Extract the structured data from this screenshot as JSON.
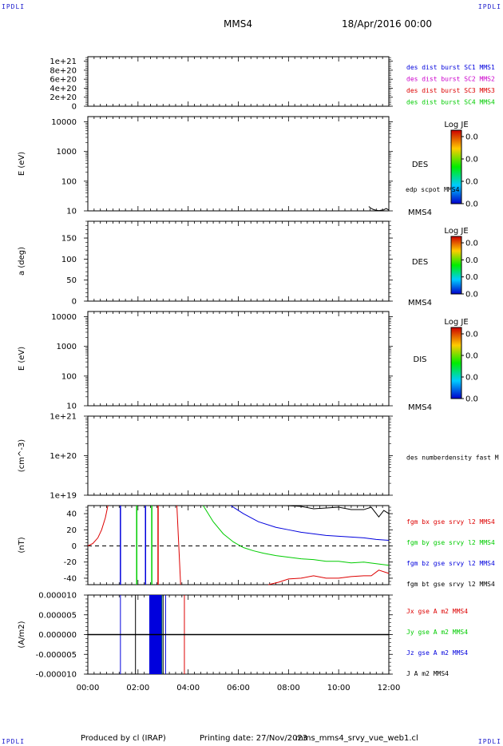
{
  "header": {
    "spacecraft": "MMS4",
    "date": "18/Apr/2016 00:00",
    "corner_left": "IPDLI",
    "corner_right": "IPDLI"
  },
  "footer": {
    "produced": "Produced by cl (IRAP)",
    "printing": "Printing date: 27/Nov/2023",
    "file": "mms_mms4_srvy_vue_web1.cl",
    "corner_left": "IPDLI",
    "corner_right": "IPDLI"
  },
  "colors": {
    "blue": "#0000dd",
    "magenta": "#cc00cc",
    "red": "#dd0000",
    "green": "#00cc00",
    "black": "#000000",
    "corner": "#1a1acc"
  },
  "chart_data": [
    {
      "type": "line",
      "panel": "dist_burst",
      "ytick_labels": [
        "1e+21",
        "8e+20",
        "6e+20",
        "4e+20",
        "2e+20",
        "0"
      ],
      "ytick_values": [
        1e+21,
        8e+20,
        6e+20,
        4e+20,
        2e+20,
        0
      ],
      "ylim": [
        0,
        1.1e+21
      ],
      "xlim": [
        0,
        12
      ],
      "zero_dashed": true,
      "series": [
        {
          "name": "des dist burst SC1 MMS1",
          "color": "#0000dd",
          "values": []
        },
        {
          "name": "des dist burst SC2 MMS2",
          "color": "#cc00cc",
          "values": []
        },
        {
          "name": "des dist burst SC3 MMS3",
          "color": "#dd0000",
          "values": []
        },
        {
          "name": "des dist burst SC4 MMS4",
          "color": "#00cc00",
          "values": []
        }
      ]
    },
    {
      "type": "heatmap",
      "panel": "des_energy",
      "ylabel": "E (eV)",
      "yscale": "log",
      "ylim": [
        10,
        15000
      ],
      "xlim": [
        0,
        12
      ],
      "ytick_labels": [
        "10000",
        "1000",
        "100",
        "10"
      ],
      "ytick_values": [
        10000,
        1000,
        100,
        10
      ],
      "label": "DES",
      "sublabel": "MMS4",
      "overlay": {
        "name": "edp scpot MMS4",
        "x": [
          11.2,
          11.25,
          11.3,
          11.4,
          11.5,
          11.6,
          11.7,
          11.8,
          11.85,
          11.9,
          12.0
        ],
        "y": [
          14,
          13,
          12,
          11,
          10.5,
          10.2,
          10.6,
          10.8,
          11.5,
          12,
          10.6
        ]
      },
      "colorbar": {
        "title": "Log JE",
        "labels": [
          "0.0",
          "0.0",
          "0.0",
          "0.0"
        ]
      }
    },
    {
      "type": "heatmap",
      "panel": "des_pitch",
      "ylabel": "a (deg)",
      "ylim": [
        0,
        190
      ],
      "xlim": [
        0,
        12
      ],
      "ytick_labels": [
        "150",
        "100",
        "50",
        "0"
      ],
      "ytick_values": [
        150,
        100,
        50,
        0
      ],
      "label": "DES",
      "sublabel": "MMS4",
      "colorbar": {
        "title": "Log JE",
        "labels": [
          "0.0",
          "0.0",
          "0.0",
          "0.0"
        ]
      }
    },
    {
      "type": "heatmap",
      "panel": "dis_energy",
      "ylabel": "E (eV)",
      "yscale": "log",
      "ylim": [
        10,
        15000
      ],
      "xlim": [
        0,
        12
      ],
      "ytick_labels": [
        "10000",
        "1000",
        "100",
        "10"
      ],
      "ytick_values": [
        10000,
        1000,
        100,
        10
      ],
      "label": "DIS",
      "sublabel": "MMS4",
      "colorbar": {
        "title": "Log JE",
        "labels": [
          "0.0",
          "0.0",
          "0.0",
          "0.0"
        ]
      }
    },
    {
      "type": "line",
      "panel": "density",
      "ylabel": "(cm^-3)",
      "yscale": "log",
      "ylim": [
        1e+19,
        1e+21
      ],
      "xlim": [
        0,
        12
      ],
      "ytick_labels": [
        "1e+21",
        "1e+20",
        "1e+19"
      ],
      "ytick_values": [
        1e+21,
        1e+20,
        1e+19
      ],
      "series": [
        {
          "name": "des numberdensity fast M",
          "color": "#000000",
          "values": []
        }
      ]
    },
    {
      "type": "line",
      "panel": "fgm",
      "ylabel": "(nT)",
      "ylim": [
        -48,
        50
      ],
      "xlim": [
        0,
        12
      ],
      "ytick_labels": [
        "40",
        "20",
        "0",
        "-20",
        "-40"
      ],
      "ytick_values": [
        40,
        20,
        0,
        -20,
        -40
      ],
      "zero_dashed": true,
      "series": [
        {
          "name": "fgm bx gse srvy l2 MMS4",
          "color": "#dd0000",
          "segments": [
            {
              "x": [
                0.0,
                0.2,
                0.4,
                0.55,
                0.7,
                0.8
              ],
              "y": [
                0,
                3,
                10,
                20,
                35,
                50
              ]
            },
            {
              "x": [
                3.55,
                3.7
              ],
              "y": [
                50,
                -48
              ]
            },
            {
              "x": [
                7.2,
                7.6,
                8.0,
                8.5,
                9.0,
                9.5,
                10.0,
                10.5,
                11.0,
                11.3,
                11.6,
                12.0
              ],
              "y": [
                -48,
                -45,
                -41,
                -40,
                -37,
                -40,
                -40,
                -38,
                -37,
                -37,
                -30,
                -34
              ]
            }
          ],
          "spikes": [
            2.8
          ]
        },
        {
          "name": "fgm by gse srvy l2 MMS4",
          "color": "#00cc00",
          "segments": [
            {
              "x": [
                4.6,
                5.0,
                5.4,
                5.8,
                6.2,
                6.6,
                7.0,
                7.5,
                8.0,
                8.5,
                9.0,
                9.5,
                10.0,
                10.5,
                11.0,
                11.5,
                12.0
              ],
              "y": [
                50,
                30,
                15,
                5,
                -2,
                -6,
                -9,
                -12,
                -14,
                -16,
                -17,
                -19,
                -19,
                -21,
                -20,
                -22,
                -24
              ]
            }
          ],
          "spikes": [
            1.95,
            2.55
          ]
        },
        {
          "name": "fgm bz gse srvy l2 MMS4",
          "color": "#0000dd",
          "segments": [
            {
              "x": [
                5.7,
                6.2,
                6.8,
                7.5,
                8.0,
                8.5,
                9.0,
                9.5,
                10.0,
                10.5,
                11.0,
                11.5,
                12.0
              ],
              "y": [
                50,
                40,
                30,
                23,
                20,
                17,
                15,
                13,
                12,
                11,
                10,
                8,
                7
              ]
            }
          ],
          "spikes": [
            1.3,
            2.3
          ]
        },
        {
          "name": "fgm bt gse srvy l2 MMS4",
          "color": "#000000",
          "segments": [
            {
              "x": [
                7.9,
                8.5,
                9.0,
                9.5,
                10.0,
                10.5,
                11.0,
                11.3,
                11.6,
                11.8,
                12.0
              ],
              "y": [
                50,
                49,
                46,
                47,
                48,
                45,
                45,
                48,
                36,
                44,
                40
              ]
            }
          ],
          "spikes": []
        }
      ]
    },
    {
      "type": "line",
      "panel": "current",
      "ylabel": "(A/m2)",
      "ylim": [
        -1e-05,
        1e-05
      ],
      "xlim": [
        0,
        12
      ],
      "ytick_labels": [
        "0.000010",
        "0.000005",
        "0.000000",
        "-0.000005",
        "-0.000010"
      ],
      "ytick_values": [
        1e-05,
        5e-06,
        0,
        -5e-06,
        -1e-05
      ],
      "series": [
        {
          "name": "Jx gse A m2 MMS4",
          "color": "#dd0000",
          "spikes": [
            3.85
          ]
        },
        {
          "name": "Jy gse A m2 MMS4",
          "color": "#00cc00",
          "spikes": [
            2.95
          ]
        },
        {
          "name": "Jz gse A m2 MMS4",
          "color": "#0000dd",
          "spikes": [
            1.3,
            3.1
          ],
          "band": [
            2.45,
            2.95
          ]
        },
        {
          "name": "J A m2 MMS4",
          "color": "#000000",
          "spikes": [
            1.9,
            3.0
          ]
        }
      ]
    }
  ],
  "x_axis": {
    "ticks": [
      "00:00",
      "02:00",
      "04:00",
      "06:00",
      "08:00",
      "10:00",
      "12:00"
    ],
    "tick_values": [
      0,
      2,
      4,
      6,
      8,
      10,
      12
    ],
    "xlim": [
      0,
      12
    ]
  }
}
